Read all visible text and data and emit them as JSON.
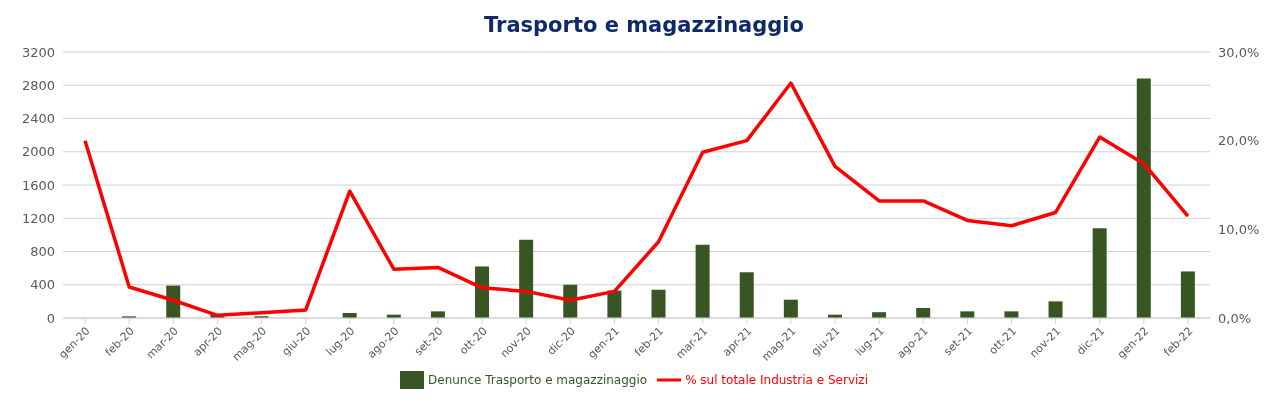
{
  "chart_data": {
    "type": "bar",
    "title": "Trasporto e magazzinaggio",
    "categories": [
      "gen-20",
      "feb-20",
      "mar-20",
      "apr-20",
      "mag-20",
      "giu-20",
      "lug-20",
      "ago-20",
      "set-20",
      "ott-20",
      "nov-20",
      "dic-20",
      "gen-21",
      "feb-21",
      "mar-21",
      "apr-21",
      "mag-21",
      "giu-21",
      "lug-21",
      "ago-21",
      "set-21",
      "ott-21",
      "nov-21",
      "dic-21",
      "gen-22",
      "feb-22"
    ],
    "series": [
      {
        "name": "Denunce Trasporto e magazzinaggio",
        "color": "#375623",
        "values": [
          0,
          20,
          390,
          40,
          20,
          0,
          60,
          40,
          80,
          620,
          940,
          400,
          330,
          340,
          880,
          550,
          220,
          40,
          70,
          120,
          80,
          80,
          200,
          1080,
          2880,
          560
        ]
      },
      {
        "name": "% sul totale Industria e Servizi",
        "type": "line",
        "axis": "y2",
        "color": "#ff0000",
        "values": [
          20.0,
          3.5,
          2.0,
          0.3,
          0.6,
          0.9,
          14.3,
          5.5,
          5.7,
          3.4,
          3.0,
          2.0,
          3.0,
          8.6,
          18.7,
          20.0,
          26.5,
          17.1,
          13.2,
          13.2,
          11.0,
          10.4,
          11.9,
          20.4,
          17.4,
          11.5
        ]
      }
    ],
    "ylim": [
      0,
      3200
    ],
    "yticks": [
      0,
      400,
      800,
      1200,
      1600,
      2000,
      2400,
      2800,
      3200
    ],
    "y2lim": [
      0,
      30
    ],
    "y2ticks": [
      {
        "value": 0,
        "label": "0,0%"
      },
      {
        "value": 10,
        "label": "10,0%"
      },
      {
        "value": 20,
        "label": "20,0%"
      },
      {
        "value": 30,
        "label": "30,0%"
      }
    ],
    "grid": "y",
    "legend": "bottom",
    "marker": "none",
    "line_style": "solid"
  }
}
